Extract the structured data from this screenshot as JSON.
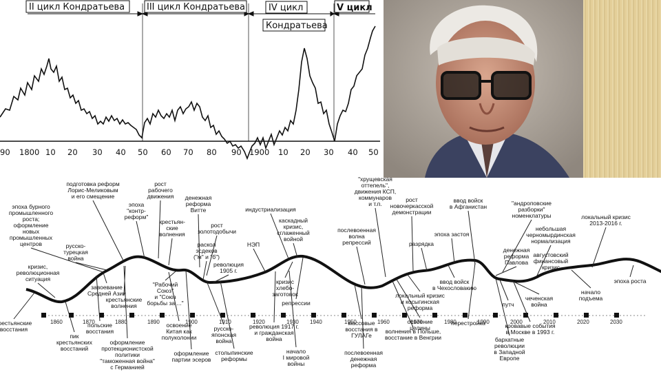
{
  "top_chart": {
    "cycle_labels": [
      "II цикл Кондратьева",
      "III цикл Кондратьева",
      "IV цикл",
      "Кондратьева",
      "V цикл"
    ],
    "x_ticks": [
      "90",
      "1800",
      "10",
      "20",
      "30",
      "40",
      "50",
      "60",
      "70",
      "80",
      "90",
      "1900",
      "10",
      "20",
      "30",
      "40",
      "50"
    ]
  },
  "bottom": {
    "timeline_years": [
      "1860",
      "1870",
      "1880",
      "1890",
      "1900",
      "1910",
      "1920",
      "1930",
      "1940",
      "1950",
      "1960",
      "1970",
      "1980",
      "1990",
      "2000",
      "2010",
      "2020",
      "2030"
    ],
    "above": [
      [
        "подготовка реформ",
        "Лорис-Меликовым",
        "и его смещение"
      ],
      [
        "рост",
        "рабочего",
        "движения"
      ],
      [
        "денежная",
        "реформа",
        "Витте"
      ],
      [
        "эпоха бурного",
        "промышленного",
        "роста;",
        "оформление",
        "новых",
        "промышленных",
        "центров"
      ],
      [
        "эпоха",
        "\"контр-",
        "реформ\""
      ],
      [
        "крестьян-",
        "ские",
        "волнения"
      ],
      [
        "рост",
        "золотодобычи"
      ],
      [
        "индустриализация"
      ],
      [
        "\"хрущевская",
        "оттепель\",",
        "движения КСП,",
        "коммунаров",
        "и т.п."
      ],
      [
        "рост",
        "новочеркасской",
        "демонстрации"
      ],
      [
        "ввод войск",
        "в Афганистан"
      ],
      [
        "\"андроповские",
        "разборки\"",
        "номенклатуры"
      ],
      [
        "локальный кризис",
        "2013-2016 г."
      ],
      [
        "русско-",
        "турецкая",
        "война"
      ],
      [
        "раскол",
        "эсдеков",
        "(\"м\" и \"б\")"
      ],
      [
        "НЭП"
      ],
      [
        "каскадный",
        "кризис,",
        "сглаженный",
        "войной"
      ],
      [
        "послевоенная",
        "волна",
        "репрессий"
      ],
      [
        "эпоха застоя"
      ],
      [
        "разрядка"
      ],
      [
        "небольшая",
        "черномырдинская",
        "нормализация"
      ],
      [
        "денежная",
        "реформа",
        "Павлова"
      ],
      [
        "августовский",
        "финансовый",
        "кризис"
      ],
      [
        "кризис,",
        "революционная",
        "ситуация"
      ],
      [
        "революция",
        "1905 г."
      ]
    ],
    "below": [
      [
        "завоевание",
        "Средней Азии"
      ],
      [
        "крестьянские",
        "волнения"
      ],
      [
        "\"Рабочий",
        "Союз\"",
        "и \"Союз",
        "борьбы за ...\""
      ],
      [
        "кризис",
        "хлебо-",
        "заготовок"
      ],
      [
        "репрессии"
      ],
      [
        "ввод войск",
        "в Чехословакию"
      ],
      [
        "локальный кризис",
        "и косыгинская",
        "реформа"
      ],
      [
        "чеченская",
        "война"
      ],
      [
        "начало",
        "подъема"
      ],
      [
        "эпоха роста"
      ],
      [
        "путч"
      ],
      [
        "крестьянские",
        "восстания"
      ],
      [
        "пик",
        "крестьянских",
        "восстаний"
      ],
      [
        "польские",
        "восстания"
      ],
      [
        "оформление",
        "протекционистской",
        "политики",
        "\"таможенная война\"",
        "с Германией"
      ],
      [
        "освоение",
        "Китая как",
        "полуколонии"
      ],
      [
        "оформление",
        "партии эсеров"
      ],
      [
        "русско-",
        "японская",
        "война"
      ],
      [
        "столыпинские",
        "реформы"
      ],
      [
        "революция 1917 г.",
        "и гражданская",
        "война"
      ],
      [
        "начало",
        "I мировой",
        "войны"
      ],
      [
        "массовые",
        "восстания в",
        "ГУЛАГе"
      ],
      [
        "послевоенная",
        "денежная",
        "реформа"
      ],
      [
        "волнения в Польше,",
        "восстание в Венгрии"
      ],
      [
        "освоение",
        "целины"
      ],
      [
        "перестройка"
      ],
      [
        "бархатные",
        "революции",
        "в Западной",
        "Европе"
      ],
      [
        "кровавые события",
        "в Москве в 1993 г."
      ]
    ]
  }
}
